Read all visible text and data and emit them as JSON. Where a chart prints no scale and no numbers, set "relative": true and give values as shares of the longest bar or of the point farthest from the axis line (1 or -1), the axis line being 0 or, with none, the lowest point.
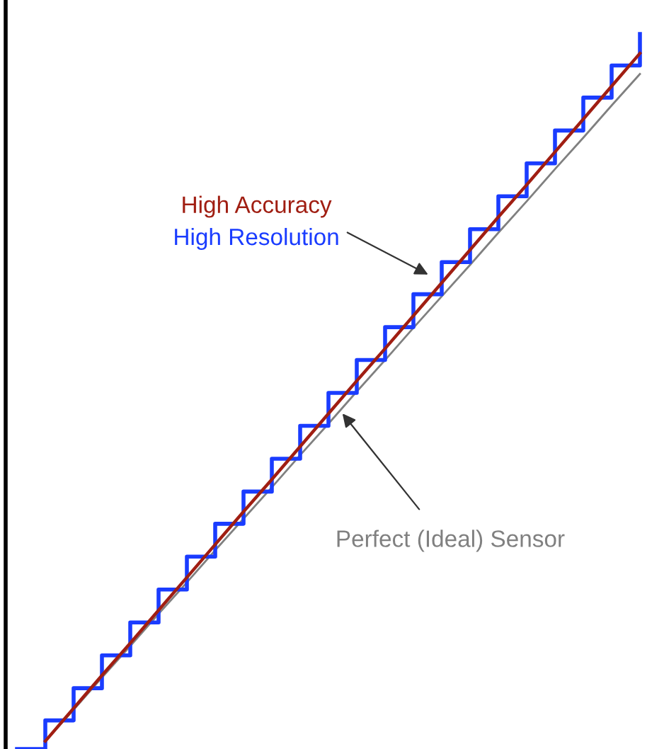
{
  "chart_data": {
    "type": "step",
    "relative": true,
    "categories": [
      null,
      null,
      null,
      null,
      null,
      null,
      null,
      null,
      null,
      null,
      null,
      null,
      null,
      null,
      null,
      null,
      null,
      null,
      null,
      null,
      null,
      null,
      null
    ],
    "series": [
      {
        "name": "Perfect (Ideal) Sensor",
        "type": "line",
        "color": "#808080",
        "values": [
          null,
          0.011,
          0.055,
          0.1,
          0.144,
          0.189,
          0.233,
          0.278,
          0.322,
          0.366,
          0.411,
          0.455,
          0.5,
          0.544,
          0.589,
          0.633,
          0.677,
          0.722,
          0.766,
          0.811,
          0.855,
          0.9,
          0.944
        ]
      },
      {
        "name": "High Resolution",
        "color": "#1a3cff",
        "values": [
          0,
          0.04,
          0.085,
          0.131,
          0.177,
          0.223,
          0.269,
          0.315,
          0.36,
          0.406,
          0.452,
          0.498,
          0.544,
          0.59,
          0.636,
          0.681,
          0.727,
          0.773,
          0.819,
          0.865,
          0.911,
          0.956,
          1
        ]
      },
      {
        "name": "High Accuracy",
        "type": "line",
        "color": "#a01e12",
        "values": [
          null,
          0.011,
          0.057,
          0.103,
          0.148,
          0.194,
          0.24,
          0.286,
          0.332,
          0.377,
          0.423,
          0.469,
          0.515,
          0.56,
          0.606,
          0.652,
          0.698,
          0.744,
          0.789,
          0.835,
          0.881,
          0.927,
          0.973
        ]
      }
    ]
  }
}
